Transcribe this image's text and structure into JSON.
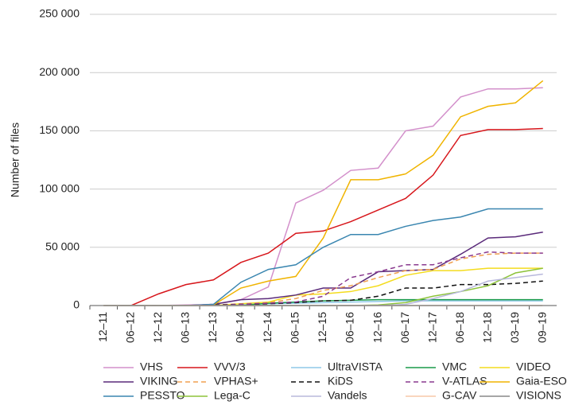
{
  "chart_data": {
    "type": "line",
    "ylabel": "Number of files",
    "categories": [
      "12–11",
      "06–12",
      "12–12",
      "06–13",
      "12–13",
      "06–14",
      "12–14",
      "06–15",
      "12–15",
      "06–16",
      "12–16",
      "06–17",
      "12–17",
      "06–18",
      "12–18",
      "03–19",
      "09–19"
    ],
    "ylim": [
      0,
      250000
    ],
    "yticks": [
      0,
      {
        "value": 50000,
        "label": "50 000"
      },
      {
        "value": 100000,
        "label": "100 000"
      },
      {
        "value": 150000,
        "label": "150 000"
      },
      {
        "value": 200000,
        "label": "200 000"
      },
      {
        "value": 250000,
        "label": "250 000"
      }
    ],
    "grid": true,
    "legend": "bottom",
    "series": [
      {
        "name": "VHS",
        "color": "#d390cb",
        "dash": false,
        "values": [
          0,
          0,
          0,
          500,
          1000,
          5000,
          16000,
          88000,
          99000,
          116000,
          118000,
          150000,
          154000,
          179000,
          186000,
          186000,
          187000
        ]
      },
      {
        "name": "VVV/3",
        "color": "#d7161b",
        "dash": false,
        "values": [
          0,
          0,
          10000,
          18000,
          22000,
          37000,
          45000,
          62000,
          64000,
          72000,
          82000,
          92000,
          112000,
          146000,
          151000,
          151000,
          152000
        ]
      },
      {
        "name": "UltraVISTA",
        "color": "#8fc8e8",
        "dash": false,
        "values": [
          0,
          0,
          0,
          0,
          0,
          1000,
          1500,
          2000,
          2500,
          3000,
          3500,
          4000,
          4000,
          4000,
          4000,
          4000,
          4000
        ]
      },
      {
        "name": "VMC",
        "color": "#1a9a4a",
        "dash": false,
        "values": [
          0,
          0,
          0,
          0,
          0,
          0,
          2000,
          3000,
          4000,
          4500,
          5000,
          5000,
          5000,
          5000,
          5000,
          5000,
          5000
        ]
      },
      {
        "name": "VIDEO",
        "color": "#f4dc1e",
        "dash": false,
        "values": [
          0,
          0,
          0,
          0,
          0,
          1500,
          3000,
          9000,
          10000,
          12000,
          17000,
          26000,
          30000,
          30000,
          32000,
          32000,
          32000
        ]
      },
      {
        "name": "VIKING",
        "color": "#5a2a7a",
        "dash": false,
        "values": [
          0,
          0,
          0,
          0,
          1000,
          5000,
          6000,
          9000,
          15000,
          15000,
          29000,
          30000,
          31000,
          44000,
          58000,
          59000,
          63000
        ]
      },
      {
        "name": "VPHAS+",
        "color": "#f0a050",
        "dash": true,
        "values": [
          0,
          0,
          0,
          0,
          500,
          1500,
          2500,
          6000,
          13000,
          17000,
          24000,
          30000,
          31000,
          40000,
          44000,
          45000,
          45000
        ]
      },
      {
        "name": "KiDS",
        "color": "#111111",
        "dash": true,
        "values": [
          0,
          0,
          0,
          0,
          500,
          1000,
          1500,
          2500,
          4000,
          4500,
          8000,
          15000,
          15000,
          18000,
          18000,
          19000,
          21000
        ]
      },
      {
        "name": "V-ATLAS",
        "color": "#8a3a8f",
        "dash": true,
        "values": [
          0,
          0,
          0,
          0,
          0,
          1000,
          2000,
          3000,
          8000,
          24000,
          29000,
          35000,
          35000,
          41000,
          46000,
          45000,
          45000
        ]
      },
      {
        "name": "Gaia-ESO",
        "color": "#f0b400",
        "dash": false,
        "values": [
          0,
          0,
          0,
          0,
          500,
          15000,
          21000,
          25000,
          58000,
          108000,
          108000,
          113000,
          129000,
          162000,
          171000,
          174000,
          193000
        ]
      },
      {
        "name": "PESSTO",
        "color": "#3a86b0",
        "dash": false,
        "values": [
          0,
          0,
          0,
          0,
          1000,
          20000,
          31000,
          35000,
          50000,
          61000,
          61000,
          68000,
          73000,
          76000,
          83000,
          83000,
          83000
        ]
      },
      {
        "name": "Lega-C",
        "color": "#8dc33a",
        "dash": false,
        "values": [
          0,
          0,
          0,
          0,
          0,
          0,
          0,
          0,
          0,
          0,
          500,
          2500,
          8000,
          12000,
          17000,
          28000,
          32000
        ]
      },
      {
        "name": "Vandels",
        "color": "#b8b8dc",
        "dash": false,
        "values": [
          0,
          0,
          0,
          0,
          0,
          0,
          0,
          0,
          0,
          0,
          0,
          1000,
          6000,
          12000,
          21000,
          24000,
          27000
        ]
      },
      {
        "name": "G-CAV",
        "color": "#f7c9a8",
        "dash": false,
        "values": [
          0,
          0,
          0,
          0,
          0,
          0,
          0,
          0,
          0,
          0,
          0,
          0,
          0,
          0,
          0,
          0,
          0
        ]
      },
      {
        "name": "VISIONS",
        "color": "#888888",
        "dash": false,
        "values": [
          0,
          0,
          0,
          0,
          0,
          0,
          0,
          0,
          0,
          0,
          0,
          0,
          0,
          0,
          0,
          0,
          0
        ]
      }
    ]
  }
}
